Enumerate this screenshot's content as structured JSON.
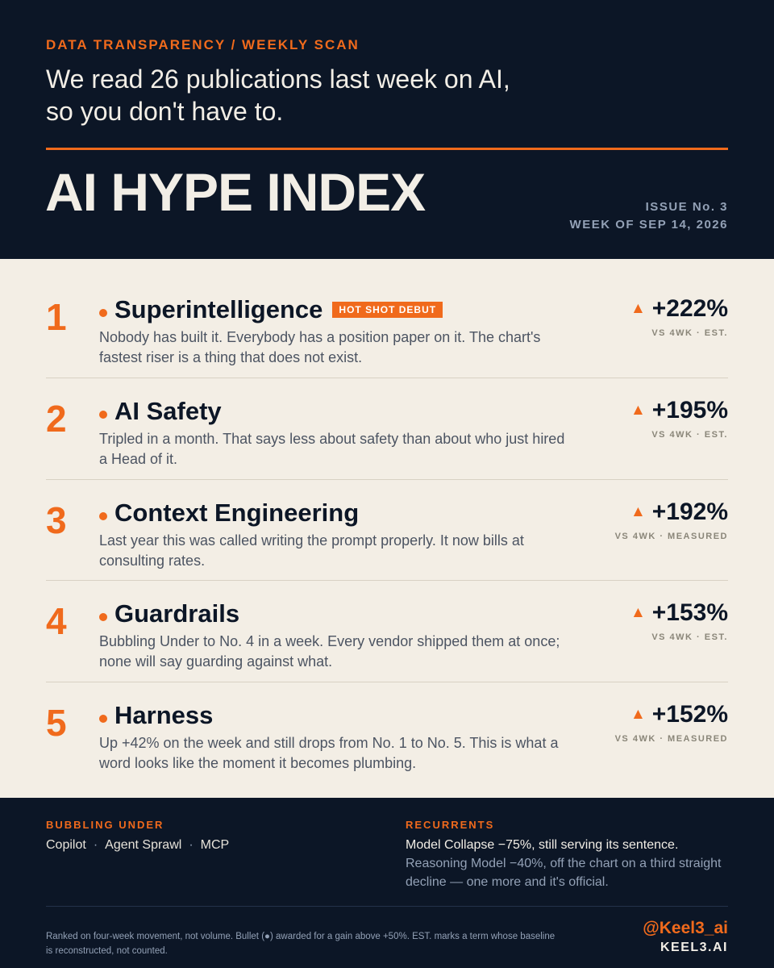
{
  "header": {
    "kicker": "DATA TRANSPARENCY / WEEKLY SCAN",
    "lede_line1": "We read 26 publications last week on AI,",
    "lede_line2": "so you don't have to.",
    "title": "AI HYPE INDEX",
    "issue": "ISSUE No. 3",
    "week": "WEEK OF SEP 14, 2026"
  },
  "colors": {
    "accent": "#f06a1c",
    "navy": "#0c1626",
    "paper": "#f3eee5"
  },
  "icons": {
    "arrow": "up-triangle",
    "bullet": "dot"
  },
  "entries": [
    {
      "rank": "1",
      "name": "Superintelligence",
      "badge": "HOT SHOT DEBUT",
      "desc": "Nobody has built it. Everybody has a position paper on it. The chart's fastest riser is a thing that does not exist.",
      "arrow": "▲",
      "change": "+222%",
      "note": "VS 4WK · EST."
    },
    {
      "rank": "2",
      "name": "AI Safety",
      "desc": "Tripled in a month. That says less about safety than about who just hired a Head of it.",
      "arrow": "▲",
      "change": "+195%",
      "note": "VS 4WK · EST."
    },
    {
      "rank": "3",
      "name": "Context Engineering",
      "desc": "Last year this was called writing the prompt properly. It now bills at consulting rates.",
      "arrow": "▲",
      "change": "+192%",
      "note": "VS 4WK · MEASURED"
    },
    {
      "rank": "4",
      "name": "Guardrails",
      "desc": "Bubbling Under to No. 4 in a week. Every vendor shipped them at once; none will say guarding against what.",
      "arrow": "▲",
      "change": "+153%",
      "note": "VS 4WK · EST."
    },
    {
      "rank": "5",
      "name": "Harness",
      "desc": "Up +42% on the week and still drops from No. 1 to No. 5. This is what a word looks like the moment it becomes plumbing.",
      "arrow": "▲",
      "change": "+152%",
      "note": "VS 4WK · MEASURED"
    }
  ],
  "footer": {
    "bubbling_label": "BUBBLING UNDER",
    "bubbling_items": [
      "Copilot",
      "Agent Sprawl",
      "MCP"
    ],
    "separator": "·",
    "recurrents_label": "RECURRENTS",
    "recurrent_1": "Model Collapse −75%, still serving its sentence.",
    "recurrent_2": "Reasoning Model −40%, off the chart on a third straight decline — one more and it's official.",
    "methodology": "Ranked on four-week movement, not volume. Bullet (●) awarded for a gain above +50%. EST. marks a term whose baseline is reconstructed, not counted.",
    "handle": "@Keel3_ai",
    "site": "KEEL3.AI"
  }
}
